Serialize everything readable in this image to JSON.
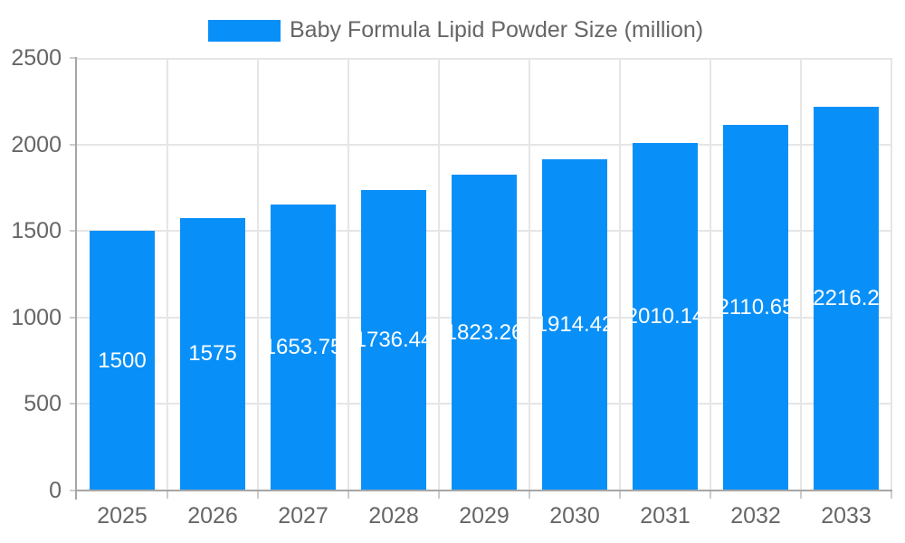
{
  "chart_data": {
    "type": "bar",
    "title": "Baby Formula Lipid Powder Size (million)",
    "legend": [
      "Baby Formula Lipid Powder Size (million)"
    ],
    "legend_position": "top",
    "categories": [
      "2025",
      "2026",
      "2027",
      "2028",
      "2029",
      "2030",
      "2031",
      "2032",
      "2033"
    ],
    "values": [
      1500,
      1575,
      1653.75,
      1736.44,
      1823.26,
      1914.42,
      2010.14,
      2110.65,
      2216.2
    ],
    "bar_labels": [
      "1500",
      "1575",
      "1653.75",
      "1736.44",
      "1823.26",
      "1914.42",
      "2010.14",
      "2110.65",
      "2216.2"
    ],
    "xlabel": "",
    "ylabel": "",
    "ylim": [
      0,
      2500
    ],
    "yticks": [
      0,
      500,
      1000,
      1500,
      2000,
      2500
    ],
    "grid": true,
    "colors": {
      "bar": "#0990F8",
      "text": "#666666",
      "grid": "#E6E6E6",
      "tick": "#CCCCCC",
      "axis": "#A6A6A6",
      "bar_label": "#FFFFFF",
      "background": "#FFFFFF"
    }
  }
}
